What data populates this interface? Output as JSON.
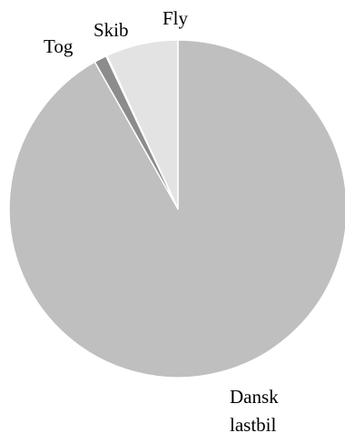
{
  "chart_data": {
    "type": "pie",
    "title": "",
    "slices": [
      {
        "label": "Dansk lastbil",
        "value": 91.8,
        "color": "#bfbfbf"
      },
      {
        "label": "Tog",
        "value": 1.2,
        "color": "#8c8c8c"
      },
      {
        "label": "Skib",
        "value": 0.1,
        "color": "#d0d0d0"
      },
      {
        "label": "Fly",
        "value": 6.9,
        "color": "#e3e3e3"
      }
    ],
    "start_angle": "12 o'clock",
    "direction": "clockwise",
    "legend": "none",
    "slice_border_color": "#ffffff"
  }
}
